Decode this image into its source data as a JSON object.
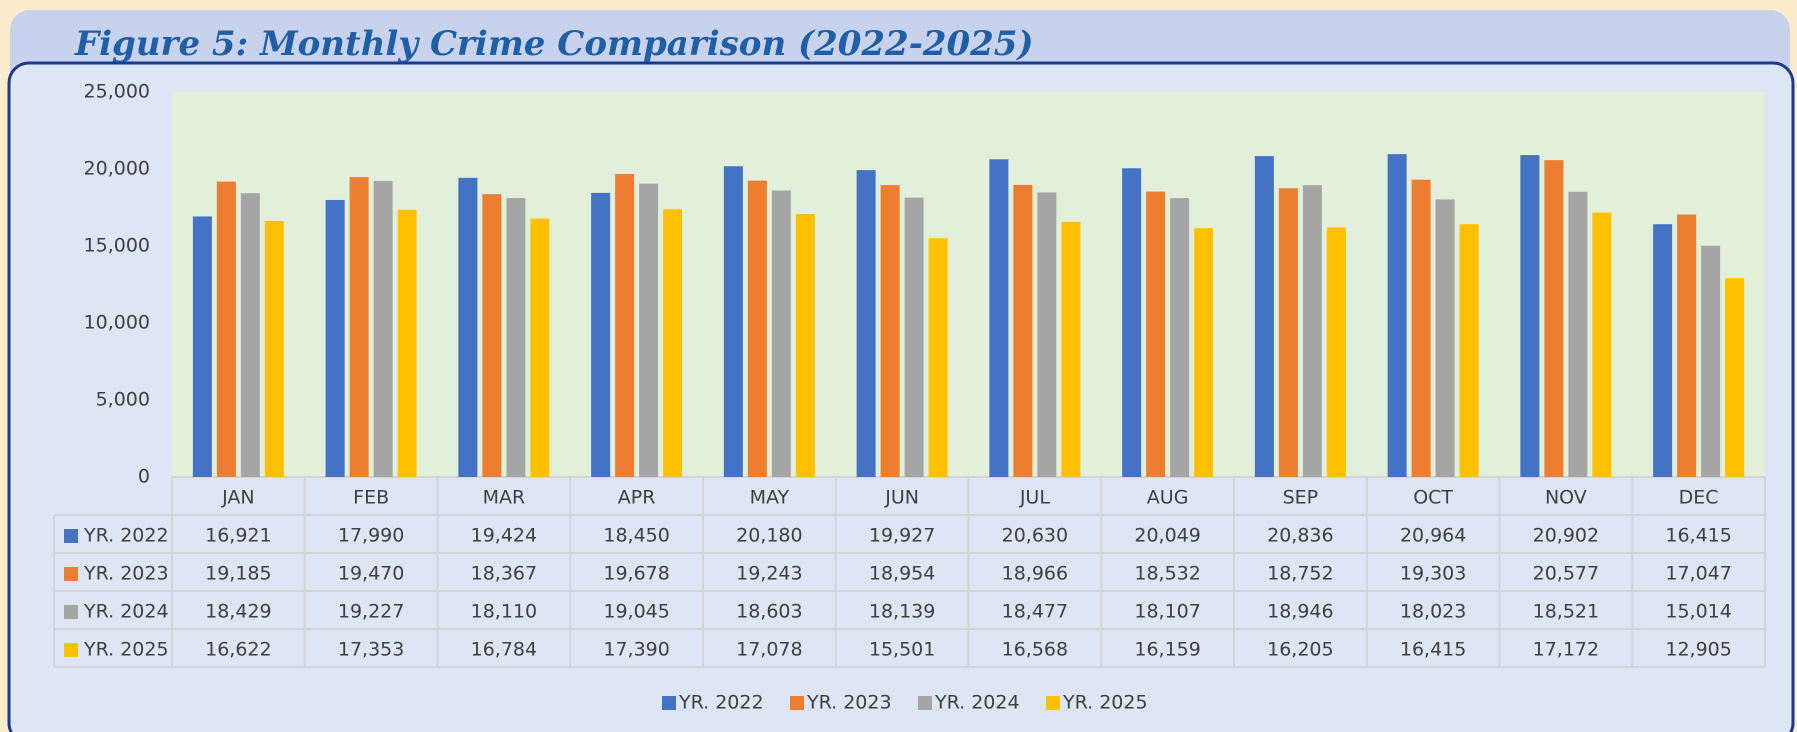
{
  "chart_data": {
    "type": "bar",
    "title": "Figure 5: Monthly Crime Comparison (2022-2025)",
    "categories": [
      "JAN",
      "FEB",
      "MAR",
      "APR",
      "MAY",
      "JUN",
      "JUL",
      "AUG",
      "SEP",
      "OCT",
      "NOV",
      "DEC"
    ],
    "series": [
      {
        "name": "YR. 2022",
        "color": "#4472c4",
        "values": [
          16921,
          17990,
          19424,
          18450,
          20180,
          19927,
          20630,
          20049,
          20836,
          20964,
          20902,
          16415
        ],
        "value_labels": [
          "16,921",
          "17,990",
          "19,424",
          "18,450",
          "20,180",
          "19,927",
          "20,630",
          "20,049",
          "20,836",
          "20,964",
          "20,902",
          "16,415"
        ]
      },
      {
        "name": "YR. 2023",
        "color": "#ed7d31",
        "values": [
          19185,
          19470,
          18367,
          19678,
          19243,
          18954,
          18966,
          18532,
          18752,
          19303,
          20577,
          17047
        ],
        "value_labels": [
          "19,185",
          "19,470",
          "18,367",
          "19,678",
          "19,243",
          "18,954",
          "18,966",
          "18,532",
          "18,752",
          "19,303",
          "20,577",
          "17,047"
        ]
      },
      {
        "name": "YR. 2024",
        "color": "#a5a5a5",
        "values": [
          18429,
          19227,
          18110,
          19045,
          18603,
          18139,
          18477,
          18107,
          18946,
          18023,
          18521,
          15014
        ],
        "value_labels": [
          "18,429",
          "19,227",
          "18,110",
          "19,045",
          "18,603",
          "18,139",
          "18,477",
          "18,107",
          "18,946",
          "18,023",
          "18,521",
          "15,014"
        ]
      },
      {
        "name": "YR. 2025",
        "color": "#ffc000",
        "values": [
          16622,
          17353,
          16784,
          17390,
          17078,
          15501,
          16568,
          16159,
          16205,
          16415,
          17172,
          12905
        ],
        "value_labels": [
          "16,622",
          "17,353",
          "16,784",
          "17,390",
          "17,078",
          "15,501",
          "16,568",
          "16,159",
          "16,205",
          "16,415",
          "17,172",
          "12,905"
        ]
      }
    ],
    "ylim": [
      0,
      25000
    ],
    "yticks": [
      0,
      {
        "value": 5000,
        "label": "5,000"
      },
      {
        "value": 10000,
        "label": "10,000"
      },
      {
        "value": 15000,
        "label": "15,000"
      },
      {
        "value": 20000,
        "label": "20,000"
      },
      {
        "value": 25000,
        "label": "25,000"
      }
    ],
    "grid": false
  }
}
